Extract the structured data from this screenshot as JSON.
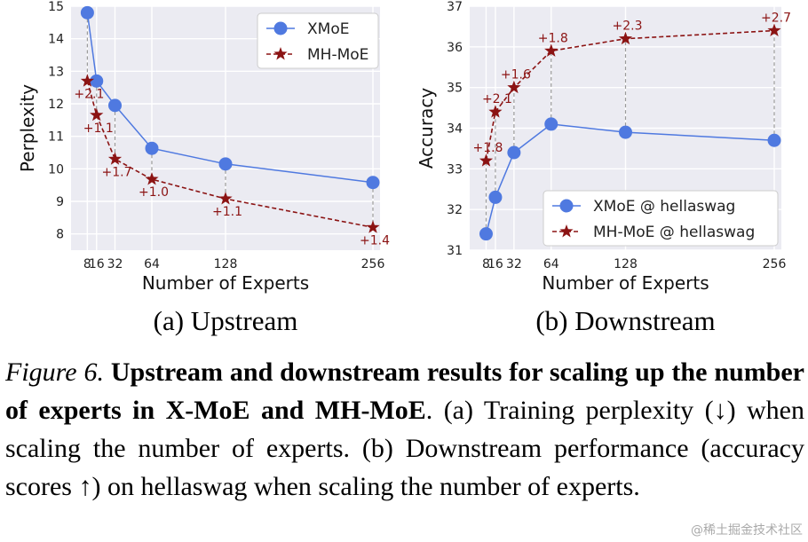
{
  "chart_data": [
    {
      "type": "line",
      "ylabel": "Perplexity",
      "xlabel": "Number of Experts",
      "subtitle": "(a) Upstream",
      "x": [
        8,
        16,
        32,
        64,
        128,
        256
      ],
      "x_tick_labels": [
        "8",
        "16",
        "32",
        "64",
        "128",
        "256"
      ],
      "ylim": [
        7.5,
        15
      ],
      "y_ticks": [
        8,
        9,
        10,
        11,
        12,
        13,
        14,
        15
      ],
      "y_tick_labels": [
        "8",
        "9",
        "10",
        "11",
        "12",
        "13",
        "14",
        "15"
      ],
      "grid": true,
      "legend_position": "top-right",
      "series": [
        {
          "name": "XMoE",
          "marker": "circle",
          "line": "solid",
          "color": "#4f79e0",
          "values": [
            14.8,
            12.7,
            11.95,
            10.63,
            10.15,
            9.58
          ]
        },
        {
          "name": "MH-MoE",
          "marker": "star",
          "line": "dashed",
          "color": "#8b1313",
          "values": [
            12.7,
            11.65,
            10.3,
            9.68,
            9.08,
            8.2
          ]
        }
      ],
      "gap_labels": [
        "+2.1",
        "+1.1",
        "+1.7",
        "+1.0",
        "+1.1",
        "+1.4"
      ]
    },
    {
      "type": "line",
      "ylabel": "Accuracy",
      "xlabel": "Number of Experts",
      "subtitle": "(b) Downstream",
      "x": [
        8,
        16,
        32,
        64,
        128,
        256
      ],
      "x_tick_labels": [
        "8",
        "16",
        "32",
        "64",
        "128",
        "256"
      ],
      "ylim": [
        31,
        37
      ],
      "y_ticks": [
        31,
        32,
        33,
        34,
        35,
        36,
        37
      ],
      "y_tick_labels": [
        "31",
        "32",
        "33",
        "34",
        "35",
        "36",
        "37"
      ],
      "grid": true,
      "legend_position": "bottom-right",
      "series": [
        {
          "name": "XMoE @ hellaswag",
          "marker": "circle",
          "line": "solid",
          "color": "#4f79e0",
          "values": [
            31.4,
            32.3,
            33.4,
            34.1,
            33.9,
            33.7
          ]
        },
        {
          "name": "MH-MoE @ hellaswag",
          "marker": "star",
          "line": "dashed",
          "color": "#8b1313",
          "values": [
            33.2,
            34.4,
            35.0,
            35.9,
            36.2,
            36.4
          ]
        }
      ],
      "gap_labels": [
        "+1.8",
        "+2.1",
        "+1.6",
        "+1.8",
        "+2.3",
        "+2.7"
      ]
    }
  ],
  "caption": {
    "lead": "Figure 6.",
    "bold": "Upstream and downstream results for scaling up the number of experts in X-MoE and MH-MoE",
    "rest": ". (a) Training perplexity (↓) when scaling the number of experts. (b) Downstream performance (accuracy scores ↑) on hellaswag when scaling the number of experts."
  },
  "watermark": "@稀土掘金技术社区"
}
